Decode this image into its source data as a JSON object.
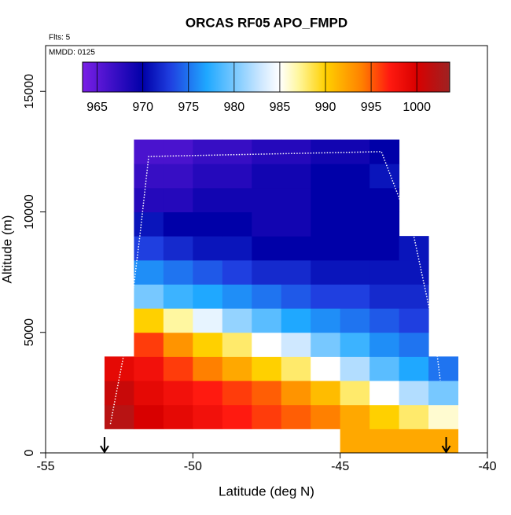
{
  "chart_data": {
    "type": "heatmap",
    "title": "ORCAS RF05 APO_FMPD",
    "notes": [
      "Flts: 5",
      "MMDD: 0125"
    ],
    "x_label": "Latitude (deg N)",
    "y_label": "Altitude (m)",
    "xlim": [
      -55,
      -40
    ],
    "xticks": [
      -55,
      -50,
      -45,
      -40
    ],
    "ylim": [
      0,
      16900
    ],
    "yticks": [
      0,
      5000,
      10000,
      15000
    ],
    "x_edges": [
      -53,
      -52,
      -51,
      -50,
      -49,
      -48,
      -47,
      -46,
      -45,
      -44,
      -43,
      -42,
      -41
    ],
    "y_edges": [
      0,
      1000,
      2000,
      3000,
      4000,
      5000,
      6000,
      7000,
      8000,
      9000,
      10000,
      11000,
      12000,
      13000
    ],
    "values": [
      [
        null,
        null,
        null,
        null,
        null,
        null,
        null,
        null,
        992,
        992,
        992,
        992
      ],
      [
        1002,
        1000,
        999,
        998,
        997,
        996,
        995,
        994,
        992,
        990,
        988,
        986
      ],
      [
        1001,
        999,
        998,
        997,
        996,
        995,
        993,
        991,
        988,
        985,
        982,
        980
      ],
      [
        999,
        998,
        996,
        994,
        992,
        990,
        988,
        985,
        982,
        979,
        977,
        975
      ],
      [
        null,
        996,
        993,
        990,
        988,
        985,
        983,
        980,
        978,
        976,
        975,
        null
      ],
      [
        null,
        990,
        987,
        984,
        981,
        979,
        977,
        976,
        975,
        974,
        973,
        null
      ],
      [
        null,
        980,
        978,
        977,
        976,
        975,
        974,
        973,
        973,
        972,
        972,
        null
      ],
      [
        null,
        976,
        975,
        974,
        973,
        972,
        972,
        971,
        971,
        971,
        971,
        null
      ],
      [
        null,
        973,
        972,
        971,
        971,
        970,
        970,
        970,
        970,
        970,
        971,
        null
      ],
      [
        null,
        971,
        970,
        970,
        970,
        969,
        969,
        970,
        970,
        970,
        null,
        null
      ],
      [
        null,
        968,
        968,
        969,
        969,
        969,
        969,
        970,
        970,
        970,
        null,
        null
      ],
      [
        null,
        967,
        967,
        968,
        968,
        969,
        969,
        970,
        970,
        971,
        null,
        null
      ],
      [
        null,
        966,
        966,
        967,
        967,
        968,
        968,
        969,
        969,
        970,
        null,
        null
      ]
    ],
    "colorscale": [
      [
        963.4,
        "#7a1fe6"
      ],
      [
        970,
        "#0000a8"
      ],
      [
        973,
        "#1f3fe0"
      ],
      [
        977,
        "#1fa8ff"
      ],
      [
        983,
        "#cfe8ff"
      ],
      [
        985,
        "#ffffff"
      ],
      [
        987,
        "#fff7a0"
      ],
      [
        990,
        "#ffd000"
      ],
      [
        994,
        "#ff8000"
      ],
      [
        997,
        "#ff1a10"
      ],
      [
        1000,
        "#d80000"
      ],
      [
        1003.6,
        "#9e2222"
      ]
    ],
    "colorbar": {
      "lim": [
        963.4,
        1003.6
      ],
      "ticks": [
        965,
        970,
        975,
        980,
        985,
        990,
        995,
        1000
      ]
    },
    "track": {
      "x": [
        -52.8,
        -52.2,
        -51.8,
        -51.5,
        -43.6,
        -42.5,
        -41.8,
        -41.6
      ],
      "y": [
        1200,
        5000,
        9000,
        12300,
        12500,
        9000,
        5000,
        3000
      ]
    },
    "arrows_x": [
      -53,
      -41.4
    ]
  }
}
